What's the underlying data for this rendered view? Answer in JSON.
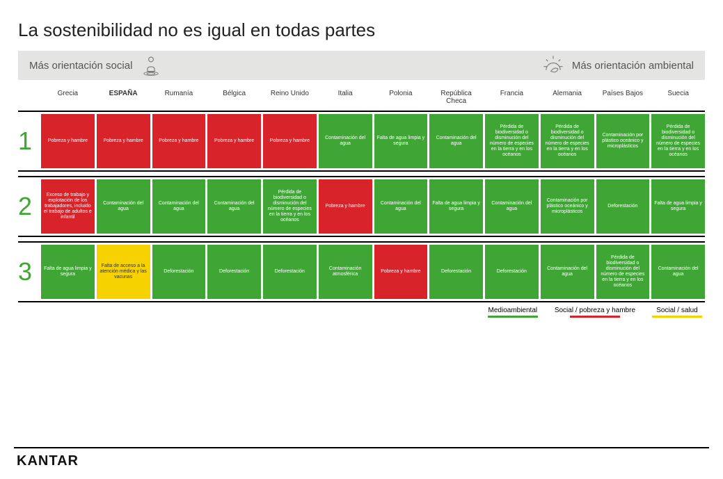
{
  "title": "La sostenibilidad no es igual en todas partes",
  "spectrum": {
    "left": "Más orientación social",
    "right": "Más orientación ambiental"
  },
  "colors": {
    "green": "#3fa535",
    "red": "#d8232a",
    "yellow": "#f6d200",
    "barBg": "#e4e4e2",
    "titleColor": "#222222",
    "numColor": "#3fa535"
  },
  "countries": [
    {
      "label": "Grecia",
      "bold": false
    },
    {
      "label": "ESPAÑA",
      "bold": true
    },
    {
      "label": "Rumanía",
      "bold": false
    },
    {
      "label": "Bélgica",
      "bold": false
    },
    {
      "label": "Reino Unido",
      "bold": false
    },
    {
      "label": "Italia",
      "bold": false
    },
    {
      "label": "Polonia",
      "bold": false
    },
    {
      "label": "República Checa",
      "bold": false
    },
    {
      "label": "Francia",
      "bold": false
    },
    {
      "label": "Alemania",
      "bold": false
    },
    {
      "label": "Países Bajos",
      "bold": false
    },
    {
      "label": "Suecia",
      "bold": false
    }
  ],
  "rows": [
    {
      "rank": "1",
      "cells": [
        {
          "c": "red",
          "t": "Pobreza y hambre"
        },
        {
          "c": "red",
          "t": "Pobreza y hambre"
        },
        {
          "c": "red",
          "t": "Pobreza y hambre"
        },
        {
          "c": "red",
          "t": "Pobreza y hambre"
        },
        {
          "c": "red",
          "t": "Pobreza y hambre"
        },
        {
          "c": "green",
          "t": "Contaminación del agua"
        },
        {
          "c": "green",
          "t": "Falta de agua limpia y segura"
        },
        {
          "c": "green",
          "t": "Contaminación del agua"
        },
        {
          "c": "green",
          "t": "Pérdida de biodiversidad o disminución del número de especies en la tierra y en los océanos"
        },
        {
          "c": "green",
          "t": "Pérdida de biodiversidad o disminución del número de especies en la tierra y en los océanos"
        },
        {
          "c": "green",
          "t": "Contaminación por plástico oceánico y microplásticos"
        },
        {
          "c": "green",
          "t": "Pérdida de biodiversidad o disminución del número de especies en la tierra y en los océanos"
        }
      ]
    },
    {
      "rank": "2",
      "cells": [
        {
          "c": "red",
          "t": "Exceso de trabajo y explotación de los trabajadores, incluido el trabajo de adultos e infantil"
        },
        {
          "c": "green",
          "t": "Contaminación del agua"
        },
        {
          "c": "green",
          "t": "Contaminación del agua"
        },
        {
          "c": "green",
          "t": "Contaminación del agua"
        },
        {
          "c": "green",
          "t": "Pérdida de biodiversidad o disminución del número de especies en la tierra y en los océanos"
        },
        {
          "c": "red",
          "t": "Pobreza y hambre"
        },
        {
          "c": "green",
          "t": "Contaminación del agua"
        },
        {
          "c": "green",
          "t": "Falta de agua limpia y segura"
        },
        {
          "c": "green",
          "t": "Contaminación del agua"
        },
        {
          "c": "green",
          "t": "Contaminación por plástico oceánico y microplásticos"
        },
        {
          "c": "green",
          "t": "Deforestación"
        },
        {
          "c": "green",
          "t": "Falta de agua limpia y segura"
        }
      ]
    },
    {
      "rank": "3",
      "cells": [
        {
          "c": "green",
          "t": "Falta de agua limpia y segura"
        },
        {
          "c": "yellow",
          "t": "Falta de acceso a la atención médica y las vacunas"
        },
        {
          "c": "green",
          "t": "Deforestación"
        },
        {
          "c": "green",
          "t": "Deforestación"
        },
        {
          "c": "green",
          "t": "Deforestación"
        },
        {
          "c": "green",
          "t": "Contaminación atmosférica"
        },
        {
          "c": "red",
          "t": "Pobreza y hambre"
        },
        {
          "c": "green",
          "t": "Deforestación"
        },
        {
          "c": "green",
          "t": "Deforestación"
        },
        {
          "c": "green",
          "t": "Contaminación del agua"
        },
        {
          "c": "green",
          "t": "Pérdida de biodiversidad o disminución del número de especies en la tierra y en los océanos"
        },
        {
          "c": "green",
          "t": "Contaminación del agua"
        }
      ]
    }
  ],
  "legend": [
    {
      "label": "Medioambiental",
      "color": "#3fa535"
    },
    {
      "label": "Social / pobreza y hambre",
      "color": "#d8232a"
    },
    {
      "label": "Social / salud",
      "color": "#f6d200"
    }
  ],
  "brand": "KANTAR"
}
